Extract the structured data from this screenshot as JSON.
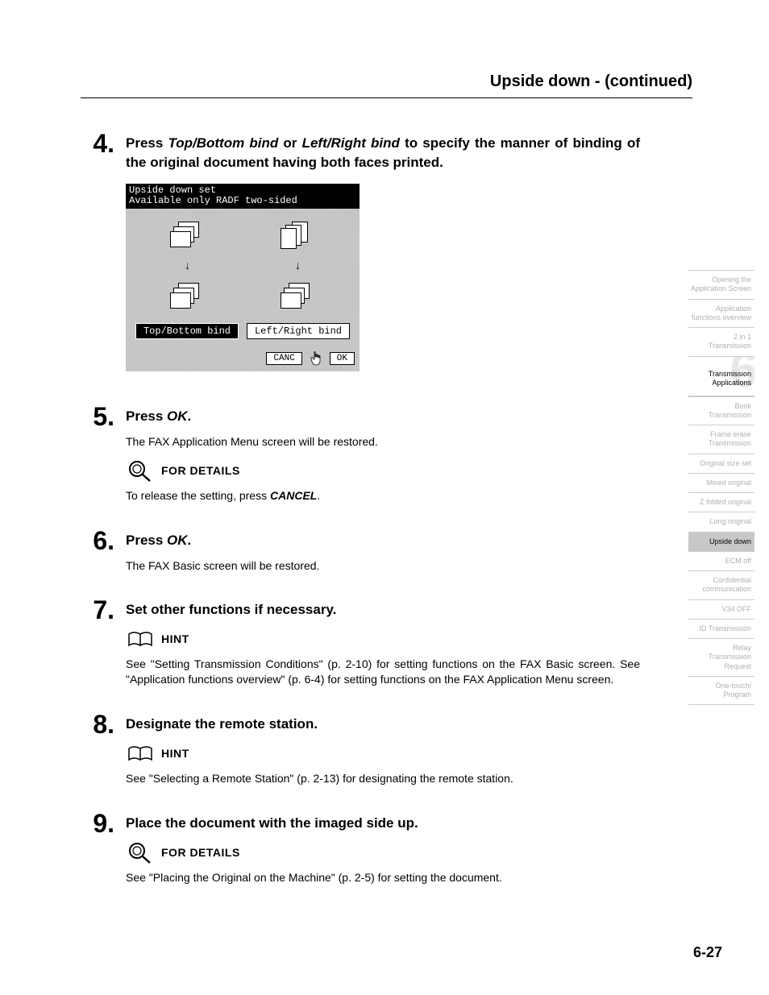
{
  "header": {
    "title": "Upside down -  (continued)"
  },
  "steps": {
    "s4": {
      "num": "4.",
      "title_parts": [
        "Press ",
        "Top/Bottom bind",
        " or ",
        "Left/Right bind",
        " to specify the man­ner of binding of the original document having both faces printed."
      ]
    },
    "s5": {
      "num": "5.",
      "title_parts": [
        "Press ",
        "OK",
        "."
      ],
      "text1": "The FAX Application Menu screen will be restored.",
      "detail_label": "FOR DETAILS",
      "text2_a": "To release the setting, press ",
      "text2_b": "CANCEL",
      "text2_c": "."
    },
    "s6": {
      "num": "6.",
      "title_parts": [
        "Press ",
        "OK",
        "."
      ],
      "text1": "The FAX Basic screen will be restored."
    },
    "s7": {
      "num": "7.",
      "title": "Set other functions if necessary.",
      "hint_label": "HINT",
      "text1": "See \"Setting Transmission Conditions\" (p. 2-10) for setting functions on the FAX Basic screen.  See \"Application functions overview\" (p. 6-4) for setting functions on the FAX Appli­cation Menu screen."
    },
    "s8": {
      "num": "8.",
      "title": "Designate the remote station.",
      "hint_label": "HINT",
      "text1": "See \"Selecting a Remote Station\" (p. 2-13) for designating the remote station."
    },
    "s9": {
      "num": "9.",
      "title": "Place the document with the imaged side up.",
      "detail_label": "FOR DETAILS",
      "text1": "See \"Placing the Original on the Machine\" (p. 2-5) for setting the document."
    }
  },
  "lcd": {
    "line1": "Upside down set",
    "line2": "Available only RADF two-sided",
    "btn_left": "Top/Bottom bind",
    "btn_right": "Left/Right bind",
    "cancel": "CANC",
    "ok": "OK"
  },
  "sidebar": {
    "chapter_big": "6",
    "chapter_label": "Transmission Applications",
    "tabs": [
      "Opening the Application Screen",
      "Application functions overview",
      "2 in 1 Transmission",
      "__CHAPTER__",
      "Book Transmission",
      "Frame erase Transmission",
      "Original size set",
      "Mixed original",
      "Z folded original",
      "Long original",
      "Upside down",
      "ECM off",
      "Confidential communication",
      "V34 OFF",
      "ID Transmission",
      "Relay Transmission Request",
      "One-touch/ Program"
    ],
    "active_index": 10
  },
  "page_number": "6-27"
}
